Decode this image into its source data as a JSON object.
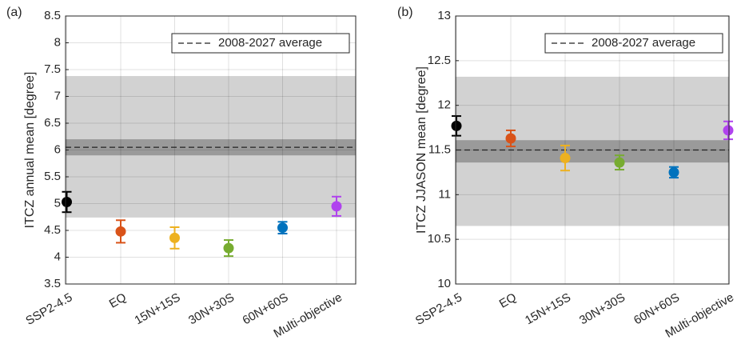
{
  "chart_data": [
    {
      "type": "errorbar",
      "panel_label": "(a)",
      "y_label": "ITCZ annual mean [degree]",
      "categories": [
        "SSP2-4.5",
        "EQ",
        "15N+15S",
        "30N+30S",
        "60N+60S",
        "Multi-objective"
      ],
      "values": [
        5.03,
        4.48,
        4.36,
        4.17,
        4.55,
        4.95
      ],
      "errors": [
        0.19,
        0.21,
        0.2,
        0.15,
        0.11,
        0.18
      ],
      "colors": [
        "#000000",
        "#d95319",
        "#edb120",
        "#77ac30",
        "#0072bd",
        "#b043ee"
      ],
      "ylim": [
        3.5,
        8.5
      ],
      "yticks": [
        3.5,
        4,
        4.5,
        5,
        5.5,
        6,
        6.5,
        7,
        7.5,
        8,
        8.5
      ],
      "grid": true,
      "bands": [
        {
          "range": [
            4.74,
            7.38
          ],
          "color": "#d2d2d2"
        },
        {
          "range": [
            5.9,
            6.2
          ],
          "color": "#9a9a9a"
        }
      ],
      "reference_line": {
        "name": "2008-2027 average",
        "value": 6.05
      },
      "legend": "upper right"
    },
    {
      "type": "errorbar",
      "panel_label": "(b)",
      "y_label": "ITCZ JJASON mean [degree]",
      "categories": [
        "SSP2-4.5",
        "EQ",
        "15N+15S",
        "30N+30S",
        "60N+60S",
        "Multi-objective"
      ],
      "values": [
        11.77,
        11.63,
        11.41,
        11.36,
        11.25,
        11.72
      ],
      "errors": [
        0.11,
        0.09,
        0.14,
        0.08,
        0.06,
        0.1
      ],
      "colors": [
        "#000000",
        "#d95319",
        "#edb120",
        "#77ac30",
        "#0072bd",
        "#b043ee"
      ],
      "ylim": [
        10,
        13
      ],
      "yticks": [
        10,
        10.5,
        11,
        11.5,
        12,
        12.5,
        13
      ],
      "grid": true,
      "bands": [
        {
          "range": [
            10.65,
            12.32
          ],
          "color": "#d2d2d2"
        },
        {
          "range": [
            11.36,
            11.61
          ],
          "color": "#9a9a9a"
        }
      ],
      "reference_line": {
        "name": "2008-2027 average",
        "value": 11.5
      },
      "legend": "upper right"
    }
  ]
}
